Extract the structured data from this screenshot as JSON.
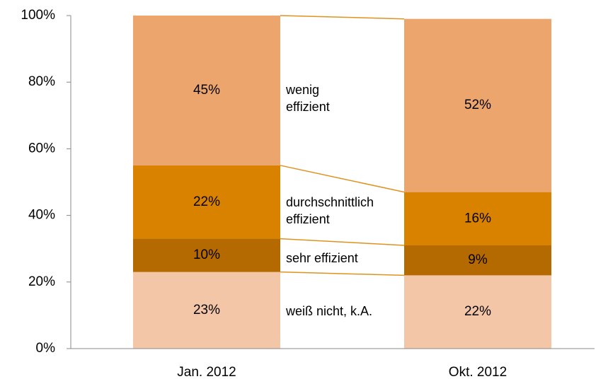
{
  "chart_data": {
    "type": "stacked_bar",
    "categories": [
      "Jan. 2012",
      "Okt. 2012"
    ],
    "series": [
      {
        "name": "weiß nicht, k.A.",
        "color": "#f4c6a8",
        "values": [
          23,
          22
        ],
        "value_labels": [
          "23%",
          "22%"
        ]
      },
      {
        "name": "sehr effizient",
        "color": "#b46a00",
        "values": [
          10,
          9
        ],
        "value_labels": [
          "10%",
          "9%"
        ]
      },
      {
        "name": "durchschnittlich\neffizient",
        "color": "#d98200",
        "values": [
          22,
          16
        ],
        "value_labels": [
          "22%",
          "16%"
        ]
      },
      {
        "name": "wenig\neffizient",
        "color": "#eda56e",
        "values": [
          45,
          52
        ],
        "value_labels": [
          "45%",
          "52%"
        ]
      }
    ],
    "connector_color": "#e0921f",
    "ylim": [
      0,
      100
    ],
    "yticks": [
      {
        "value": 0,
        "label": "0%"
      },
      {
        "value": 20,
        "label": "20%"
      },
      {
        "value": 40,
        "label": "40%"
      },
      {
        "value": 60,
        "label": "60%"
      },
      {
        "value": 80,
        "label": "80%"
      },
      {
        "value": 100,
        "label": "100%"
      }
    ]
  }
}
